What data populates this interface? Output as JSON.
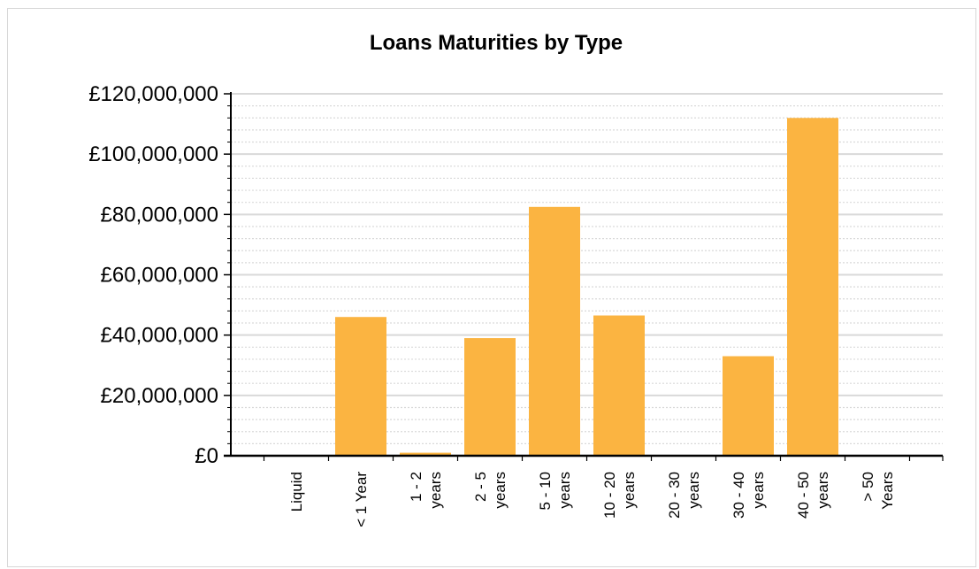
{
  "chart_data": {
    "type": "bar",
    "title": "Loans Maturities by Type",
    "xlabel": "",
    "ylabel": "",
    "categories": [
      [
        "Liquid"
      ],
      [
        "< 1 Year"
      ],
      [
        "1 - 2",
        "years"
      ],
      [
        "2 - 5",
        "years"
      ],
      [
        "5 - 10",
        "years"
      ],
      [
        "10 - 20",
        "years"
      ],
      [
        "20 - 30",
        "years"
      ],
      [
        "30 - 40",
        "years"
      ],
      [
        "40 - 50",
        "years"
      ],
      [
        "> 50",
        "Years"
      ]
    ],
    "values": [
      0,
      46000000,
      1000000,
      39000000,
      82500000,
      46500000,
      0,
      33000000,
      112000000,
      0
    ],
    "ylim": [
      0,
      120000000
    ],
    "yticks": [
      0,
      20000000,
      40000000,
      60000000,
      80000000,
      100000000,
      120000000
    ],
    "ytick_labels": [
      "£0",
      "£20,000,000",
      "£40,000,000",
      "£60,000,000",
      "£80,000,000",
      "£100,000,000",
      "£120,000,000"
    ],
    "bar_color": "#fbb441",
    "major_grid_color": "#d9d9d9",
    "minor_grid_color": "#d9d9d9",
    "grid": true
  }
}
